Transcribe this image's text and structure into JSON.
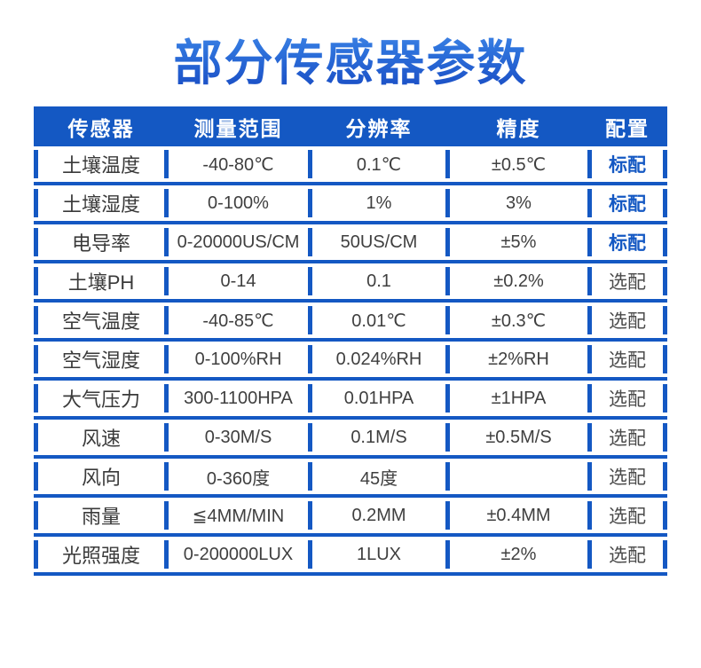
{
  "page": {
    "title": "部分传感器参数"
  },
  "colors": {
    "accent_blue": "#1458c3",
    "title_gradient_top": "#4a8ce9",
    "title_gradient_bottom": "#1b50c6",
    "standard_badge_text": "#1458c3",
    "optional_badge_text": "#4a4a4a",
    "cell_text": "#3f3f3f"
  },
  "table": {
    "headers": [
      "传感器",
      "测量范围",
      "分辨率",
      "精度",
      "配置"
    ],
    "rows": [
      {
        "sensor": "土壤温度",
        "range": "-40-80℃",
        "resolution": "0.1℃",
        "accuracy": "±0.5℃",
        "config": "标配",
        "standard": true
      },
      {
        "sensor": "土壤湿度",
        "range": "0-100%",
        "resolution": "1%",
        "accuracy": "3%",
        "config": "标配",
        "standard": true
      },
      {
        "sensor": "电导率",
        "range": "0-20000US/CM",
        "resolution": "50US/CM",
        "accuracy": "±5%",
        "config": "标配",
        "standard": true
      },
      {
        "sensor": "土壤PH",
        "range": "0-14",
        "resolution": "0.1",
        "accuracy": "±0.2%",
        "config": "选配",
        "standard": false
      },
      {
        "sensor": "空气温度",
        "range": "-40-85℃",
        "resolution": "0.01℃",
        "accuracy": "±0.3℃",
        "config": "选配",
        "standard": false
      },
      {
        "sensor": "空气湿度",
        "range": "0-100%RH",
        "resolution": "0.024%RH",
        "accuracy": "±2%RH",
        "config": "选配",
        "standard": false
      },
      {
        "sensor": "大气压力",
        "range": "300-1100HPA",
        "resolution": "0.01HPA",
        "accuracy": "±1HPA",
        "config": "选配",
        "standard": false
      },
      {
        "sensor": "风速",
        "range": "0-30M/S",
        "resolution": "0.1M/S",
        "accuracy": "±0.5M/S",
        "config": "选配",
        "standard": false
      },
      {
        "sensor": "风向",
        "range": "0-360度",
        "resolution": "45度",
        "accuracy": "",
        "config": "选配",
        "standard": false
      },
      {
        "sensor": "雨量",
        "range": "≦4MM/MIN",
        "resolution": "0.2MM",
        "accuracy": "±0.4MM",
        "config": "选配",
        "standard": false
      },
      {
        "sensor": "光照强度",
        "range": "0-200000LUX",
        "resolution": "1LUX",
        "accuracy": "±2%",
        "config": "选配",
        "standard": false
      }
    ]
  }
}
